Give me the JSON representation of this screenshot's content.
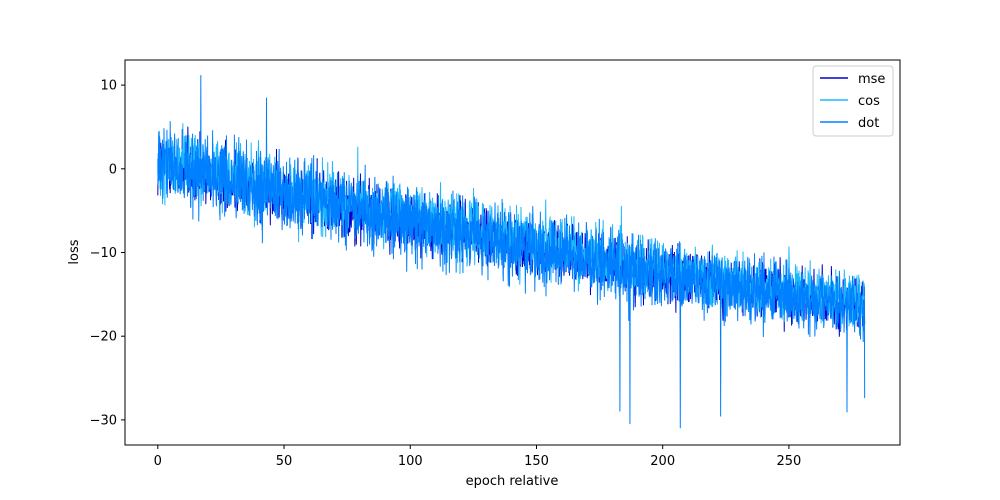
{
  "chart_data": {
    "type": "line",
    "title": "",
    "xlabel": "epoch relative",
    "ylabel": "loss",
    "xlim": [
      -13,
      294
    ],
    "ylim": [
      -33,
      13
    ],
    "xticks": [
      0,
      50,
      100,
      150,
      200,
      250
    ],
    "yticks": [
      10,
      0,
      -10,
      -20,
      -30
    ],
    "ytick_labels": [
      "10",
      "0",
      "−10",
      "−20",
      "−30"
    ],
    "grid": false,
    "legend": "top-right",
    "series": [
      {
        "name": "mse",
        "color": "#0000cd",
        "x": [
          0,
          20,
          40,
          60,
          80,
          100,
          120,
          140,
          160,
          180,
          200,
          220,
          240,
          260,
          280
        ],
        "center": [
          0.5,
          -0.5,
          -2.0,
          -3.5,
          -4.8,
          -6.2,
          -7.5,
          -8.8,
          -10.0,
          -11.3,
          -12.4,
          -13.6,
          -14.5,
          -15.5,
          -16.5
        ],
        "spread": [
          6.0,
          5.8,
          5.6,
          5.4,
          5.3,
          5.2,
          5.1,
          5.0,
          4.9,
          4.8,
          4.7,
          4.6,
          4.5,
          4.4,
          4.3
        ]
      },
      {
        "name": "cos",
        "color": "#1cb8ff",
        "x": [
          0,
          20,
          40,
          60,
          80,
          100,
          120,
          140,
          160,
          180,
          200,
          220,
          240,
          260,
          280
        ],
        "center": [
          0.8,
          -0.2,
          -1.6,
          -3.0,
          -4.3,
          -5.6,
          -6.9,
          -8.2,
          -9.5,
          -10.7,
          -11.9,
          -13.0,
          -14.0,
          -15.0,
          -16.0
        ],
        "spread": [
          6.2,
          6.0,
          5.8,
          5.6,
          5.5,
          5.4,
          5.3,
          5.2,
          5.1,
          5.0,
          4.9,
          4.8,
          4.7,
          4.6,
          4.5
        ]
      },
      {
        "name": "dot",
        "color": "#0080ff",
        "x": [
          0,
          20,
          40,
          60,
          80,
          100,
          120,
          140,
          160,
          180,
          200,
          220,
          240,
          260,
          280
        ],
        "center": [
          0.3,
          -0.8,
          -2.3,
          -3.8,
          -5.1,
          -6.5,
          -7.8,
          -9.1,
          -10.3,
          -11.6,
          -12.7,
          -13.9,
          -14.8,
          -15.8,
          -16.8
        ],
        "spread": [
          7.0,
          6.8,
          6.6,
          6.4,
          6.3,
          6.2,
          6.1,
          6.0,
          5.9,
          5.8,
          5.7,
          5.6,
          5.5,
          5.4,
          5.3
        ],
        "extremes": [
          {
            "x": 17,
            "y": 11.2
          },
          {
            "x": 43,
            "y": 8.5
          },
          {
            "x": 183,
            "y": -29.0
          },
          {
            "x": 187,
            "y": -30.5
          },
          {
            "x": 207,
            "y": -31.0
          },
          {
            "x": 223,
            "y": -29.6
          },
          {
            "x": 273,
            "y": -29.1
          },
          {
            "x": 280,
            "y": -27.4
          }
        ]
      }
    ]
  }
}
